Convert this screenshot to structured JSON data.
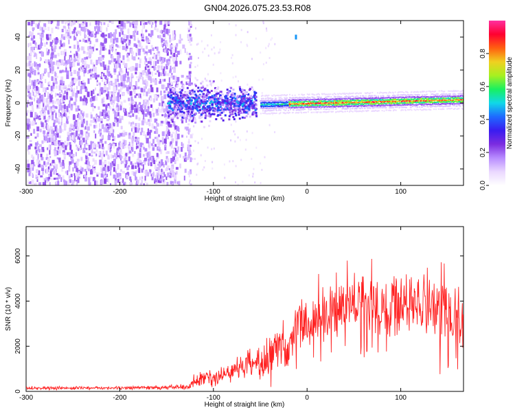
{
  "title": "GN04.2026.075.23.53.R08",
  "colors": {
    "snr_line": "#ff2020",
    "spectrogram_bg": "#ffffff",
    "colorbar_stops": [
      "#ffffff",
      "#ead8ff",
      "#b88cff",
      "#7c2ce0",
      "#3a1cf0",
      "#1e6aff",
      "#10d8e8",
      "#18f060",
      "#a8f020",
      "#f0d020",
      "#ff6010",
      "#ff0030",
      "#ff30a0"
    ]
  },
  "chart_data": [
    {
      "id": "spectrogram",
      "type": "heatmap",
      "xlabel": "Height of straight line (km)",
      "ylabel": "Frequency (Hz)",
      "xlim": [
        -300,
        167
      ],
      "ylim": [
        -50,
        50
      ],
      "x_ticks": [
        -300,
        -200,
        -100,
        0,
        100
      ],
      "x_tick_labels": [
        "-300",
        "-200",
        "-100",
        "0",
        "100"
      ],
      "y_ticks": [
        -40,
        -20,
        0,
        20,
        40
      ],
      "y_tick_labels": [
        "-40",
        "-20",
        "0",
        "20",
        "40"
      ],
      "colorbar": {
        "label": "Normalized spectral amplitude",
        "range": [
          0,
          1
        ],
        "ticks": [
          0,
          0.2,
          0.4,
          0.6,
          0.8
        ],
        "tick_labels": [
          "0.0",
          "0.2",
          "0.4",
          "0.6",
          "0.8"
        ]
      },
      "regions": [
        {
          "name": "noise",
          "x_range": [
            -300,
            -140
          ],
          "freq_range": [
            -50,
            50
          ],
          "amplitude": 0.2
        },
        {
          "name": "onset",
          "x_range": [
            -150,
            -55
          ],
          "freq_range": [
            -10,
            10
          ],
          "amplitude": 0.35
        },
        {
          "name": "tone",
          "x_range": [
            -50,
            167
          ],
          "freq_start": -1,
          "freq_end": 2,
          "amplitude": 0.9
        }
      ]
    },
    {
      "id": "snr",
      "type": "line",
      "xlabel": "Height of straight line (km)",
      "ylabel": "SNR (10 * v/v)",
      "xlim": [
        -300,
        167
      ],
      "ylim": [
        0,
        7300
      ],
      "x_ticks": [
        -300,
        -200,
        -100,
        0,
        100
      ],
      "x_tick_labels": [
        "-300",
        "-200",
        "-100",
        "0",
        "100"
      ],
      "y_ticks": [
        0,
        2000,
        4000,
        6000
      ],
      "y_tick_labels": [
        "0",
        "2000",
        "4000",
        "6000"
      ],
      "x": [
        -300,
        -250,
        -200,
        -150,
        -125,
        -120,
        -100,
        -80,
        -60,
        -45,
        -30,
        -20,
        -10,
        0,
        20,
        40,
        60,
        80,
        100,
        120,
        140,
        160,
        167
      ],
      "mean": [
        150,
        150,
        160,
        180,
        220,
        500,
        600,
        850,
        1300,
        1400,
        2000,
        1800,
        3100,
        2800,
        3500,
        3800,
        4100,
        3700,
        3800,
        3900,
        3600,
        3200,
        2900
      ],
      "spread": [
        60,
        60,
        60,
        70,
        90,
        250,
        300,
        350,
        500,
        650,
        650,
        650,
        800,
        900,
        900,
        1000,
        1000,
        1000,
        1100,
        1100,
        1100,
        1000,
        900
      ]
    }
  ]
}
